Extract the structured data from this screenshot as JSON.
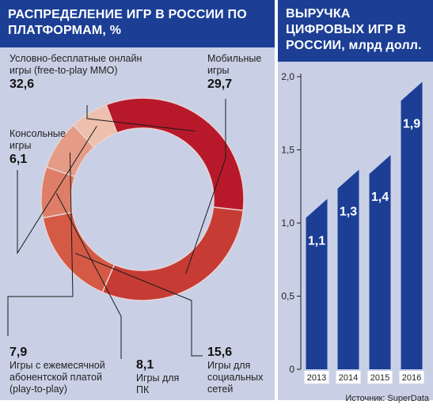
{
  "left_chart": {
    "title": "РАСПРЕДЕЛЕНИЕ ИГР В РОССИИ ПО ПЛАТФОРМАМ, %"
  },
  "right_chart": {
    "title": "ВЫРУЧКА ЦИФРОВЫХ ИГР В РОССИИ,",
    "unit": "млрд долл."
  },
  "source": "Источник: SuperData",
  "chart_data": [
    {
      "type": "pie",
      "title": "РАСПРЕДЕЛЕНИЕ ИГР В РОССИИ ПО ПЛАТФОРМАМ, %",
      "donut": true,
      "slices": [
        {
          "label": "Условно-бесплатные онлайн игры (free-to-play MMO)",
          "value": 32.6,
          "value_label": "32,6",
          "color": "#b8192a"
        },
        {
          "label": "Мобильные игры",
          "value": 29.7,
          "value_label": "29,7",
          "color": "#c63c35"
        },
        {
          "label": "Игры для социальных сетей",
          "value": 15.6,
          "value_label": "15,6",
          "color": "#d45a46"
        },
        {
          "label": "Игры для ПК",
          "value": 8.1,
          "value_label": "8,1",
          "color": "#de7e68"
        },
        {
          "label": "Игры с ежемесячной абонентской платой (play-to-play)",
          "value": 7.9,
          "value_label": "7,9",
          "color": "#e59c86"
        },
        {
          "label": "Консольные игры",
          "value": 6.1,
          "value_label": "6,1",
          "color": "#edbfad"
        }
      ]
    },
    {
      "type": "bar",
      "title": "ВЫРУЧКА ЦИФРОВЫХ ИГР В РОССИИ, млрд долл.",
      "categories": [
        "2013",
        "2014",
        "2015",
        "2016"
      ],
      "values": [
        1.1,
        1.3,
        1.4,
        1.9
      ],
      "value_labels": [
        "1,1",
        "1,3",
        "1,4",
        "1,9"
      ],
      "ylim": [
        0,
        2.0
      ],
      "yticks": [
        0,
        0.5,
        1.0,
        1.5,
        2.0
      ],
      "ytick_labels": [
        "0",
        "0,5",
        "1,0",
        "1,5",
        "2,0"
      ],
      "bar_color": "#1c3f95",
      "grid": false
    }
  ]
}
